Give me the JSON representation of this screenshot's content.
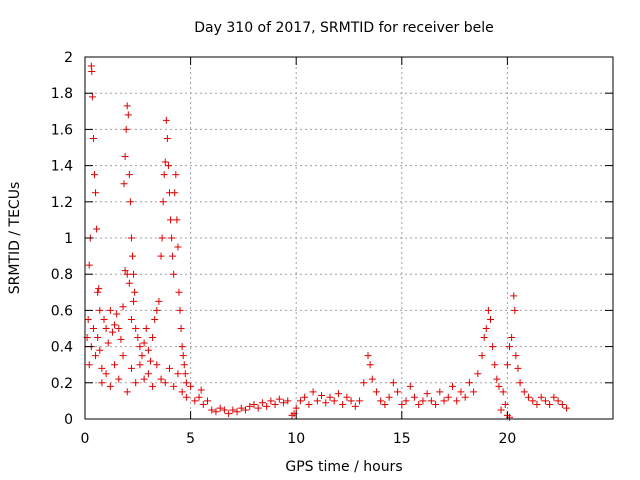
{
  "chart_data": {
    "type": "scatter",
    "title": "Day 310 of 2017, SRMTID for receiver bele",
    "xlabel": "GPS time / hours",
    "ylabel": "SRMTID / TECUs",
    "xlim": [
      0,
      25
    ],
    "ylim": [
      0,
      2
    ],
    "xticks": [
      0,
      5,
      10,
      15,
      20
    ],
    "xtick_labels": [
      "0",
      "5",
      "10",
      "15",
      "20"
    ],
    "yticks": [
      0,
      0.2,
      0.4,
      0.6,
      0.8,
      1,
      1.2,
      1.4,
      1.6,
      1.8,
      2
    ],
    "ytick_labels": [
      "0",
      "0.2",
      "0.4",
      "0.6",
      "0.8",
      "1",
      "1.2",
      "1.4",
      "1.6",
      "1.8",
      "2"
    ],
    "grid": true,
    "marker": "+",
    "color": "#e00000",
    "series": [
      {
        "name": "SRMTID",
        "points": [
          [
            0.1,
            0.45
          ],
          [
            0.15,
            0.55
          ],
          [
            0.2,
            0.85
          ],
          [
            0.25,
            1.0
          ],
          [
            0.3,
            1.95
          ],
          [
            0.32,
            1.92
          ],
          [
            0.35,
            1.78
          ],
          [
            0.4,
            1.55
          ],
          [
            0.45,
            1.35
          ],
          [
            0.5,
            1.25
          ],
          [
            0.55,
            1.05
          ],
          [
            0.6,
            0.7
          ],
          [
            0.65,
            0.72
          ],
          [
            0.7,
            0.6
          ],
          [
            0.2,
            0.3
          ],
          [
            0.3,
            0.4
          ],
          [
            0.4,
            0.5
          ],
          [
            0.5,
            0.35
          ],
          [
            0.6,
            0.45
          ],
          [
            0.7,
            0.38
          ],
          [
            0.8,
            0.28
          ],
          [
            0.9,
            0.55
          ],
          [
            1.0,
            0.5
          ],
          [
            1.1,
            0.42
          ],
          [
            1.2,
            0.6
          ],
          [
            1.3,
            0.48
          ],
          [
            1.4,
            0.52
          ],
          [
            1.5,
            0.58
          ],
          [
            1.6,
            0.5
          ],
          [
            1.7,
            0.44
          ],
          [
            1.8,
            0.62
          ],
          [
            1.85,
            1.3
          ],
          [
            1.9,
            1.45
          ],
          [
            1.95,
            1.6
          ],
          [
            2.0,
            1.73
          ],
          [
            2.05,
            1.68
          ],
          [
            2.1,
            1.35
          ],
          [
            2.15,
            1.2
          ],
          [
            2.2,
            1.0
          ],
          [
            2.25,
            0.9
          ],
          [
            2.3,
            0.8
          ],
          [
            2.35,
            0.7
          ],
          [
            1.9,
            0.82
          ],
          [
            2.0,
            0.8
          ],
          [
            2.1,
            0.75
          ],
          [
            2.2,
            0.55
          ],
          [
            2.3,
            0.65
          ],
          [
            2.4,
            0.5
          ],
          [
            2.5,
            0.45
          ],
          [
            2.6,
            0.4
          ],
          [
            2.7,
            0.35
          ],
          [
            2.8,
            0.42
          ],
          [
            2.9,
            0.5
          ],
          [
            3.0,
            0.38
          ],
          [
            3.1,
            0.32
          ],
          [
            3.2,
            0.45
          ],
          [
            3.3,
            0.55
          ],
          [
            3.4,
            0.6
          ],
          [
            3.5,
            0.65
          ],
          [
            3.6,
            0.9
          ],
          [
            3.65,
            1.0
          ],
          [
            3.7,
            1.2
          ],
          [
            3.75,
            1.35
          ],
          [
            3.8,
            1.42
          ],
          [
            3.85,
            1.65
          ],
          [
            3.9,
            1.55
          ],
          [
            3.95,
            1.4
          ],
          [
            4.0,
            1.25
          ],
          [
            4.05,
            1.1
          ],
          [
            4.1,
            1.0
          ],
          [
            4.15,
            0.9
          ],
          [
            4.2,
            0.8
          ],
          [
            4.25,
            1.25
          ],
          [
            4.3,
            1.35
          ],
          [
            4.35,
            1.1
          ],
          [
            4.4,
            0.95
          ],
          [
            4.45,
            0.7
          ],
          [
            4.5,
            0.6
          ],
          [
            4.55,
            0.5
          ],
          [
            4.6,
            0.4
          ],
          [
            4.65,
            0.35
          ],
          [
            4.7,
            0.3
          ],
          [
            4.75,
            0.25
          ],
          [
            4.8,
            0.2
          ],
          [
            0.8,
            0.2
          ],
          [
            1.0,
            0.25
          ],
          [
            1.2,
            0.18
          ],
          [
            1.4,
            0.3
          ],
          [
            1.6,
            0.22
          ],
          [
            1.8,
            0.35
          ],
          [
            2.0,
            0.15
          ],
          [
            2.2,
            0.28
          ],
          [
            2.4,
            0.2
          ],
          [
            2.6,
            0.3
          ],
          [
            2.8,
            0.22
          ],
          [
            3.0,
            0.25
          ],
          [
            3.2,
            0.18
          ],
          [
            3.4,
            0.3
          ],
          [
            3.6,
            0.22
          ],
          [
            3.8,
            0.2
          ],
          [
            4.0,
            0.28
          ],
          [
            4.2,
            0.18
          ],
          [
            4.4,
            0.25
          ],
          [
            4.6,
            0.15
          ],
          [
            4.8,
            0.12
          ],
          [
            5.0,
            0.18
          ],
          [
            5.2,
            0.1
          ],
          [
            5.4,
            0.12
          ],
          [
            5.5,
            0.16
          ],
          [
            5.6,
            0.08
          ],
          [
            5.8,
            0.1
          ],
          [
            6.0,
            0.05
          ],
          [
            6.2,
            0.04
          ],
          [
            6.4,
            0.06
          ],
          [
            6.6,
            0.05
          ],
          [
            6.8,
            0.03
          ],
          [
            7.0,
            0.05
          ],
          [
            7.2,
            0.04
          ],
          [
            7.4,
            0.06
          ],
          [
            7.6,
            0.05
          ],
          [
            7.8,
            0.07
          ],
          [
            8.0,
            0.08
          ],
          [
            8.2,
            0.06
          ],
          [
            8.4,
            0.09
          ],
          [
            8.6,
            0.07
          ],
          [
            8.8,
            0.1
          ],
          [
            9.0,
            0.08
          ],
          [
            9.2,
            0.11
          ],
          [
            9.4,
            0.09
          ],
          [
            9.6,
            0.1
          ],
          [
            9.8,
            0.02
          ],
          [
            9.9,
            0.03
          ],
          [
            10.0,
            0.06
          ],
          [
            10.2,
            0.1
          ],
          [
            10.4,
            0.12
          ],
          [
            10.6,
            0.08
          ],
          [
            10.8,
            0.15
          ],
          [
            11.0,
            0.1
          ],
          [
            11.2,
            0.13
          ],
          [
            11.4,
            0.09
          ],
          [
            11.6,
            0.12
          ],
          [
            11.8,
            0.1
          ],
          [
            12.0,
            0.14
          ],
          [
            12.2,
            0.08
          ],
          [
            12.4,
            0.12
          ],
          [
            12.6,
            0.1
          ],
          [
            12.8,
            0.07
          ],
          [
            13.0,
            0.1
          ],
          [
            13.2,
            0.2
          ],
          [
            13.4,
            0.35
          ],
          [
            13.5,
            0.3
          ],
          [
            13.6,
            0.22
          ],
          [
            13.8,
            0.15
          ],
          [
            14.0,
            0.1
          ],
          [
            14.2,
            0.08
          ],
          [
            14.4,
            0.12
          ],
          [
            14.6,
            0.2
          ],
          [
            14.8,
            0.15
          ],
          [
            15.0,
            0.08
          ],
          [
            15.2,
            0.1
          ],
          [
            15.4,
            0.18
          ],
          [
            15.6,
            0.12
          ],
          [
            15.8,
            0.08
          ],
          [
            16.0,
            0.1
          ],
          [
            16.2,
            0.14
          ],
          [
            16.4,
            0.1
          ],
          [
            16.6,
            0.08
          ],
          [
            16.8,
            0.15
          ],
          [
            17.0,
            0.1
          ],
          [
            17.2,
            0.12
          ],
          [
            17.4,
            0.18
          ],
          [
            17.6,
            0.1
          ],
          [
            17.8,
            0.15
          ],
          [
            18.0,
            0.12
          ],
          [
            18.2,
            0.2
          ],
          [
            18.4,
            0.15
          ],
          [
            18.6,
            0.25
          ],
          [
            18.8,
            0.35
          ],
          [
            18.9,
            0.45
          ],
          [
            19.0,
            0.5
          ],
          [
            19.1,
            0.6
          ],
          [
            19.2,
            0.55
          ],
          [
            19.3,
            0.4
          ],
          [
            19.4,
            0.3
          ],
          [
            19.5,
            0.22
          ],
          [
            19.6,
            0.18
          ],
          [
            19.8,
            0.15
          ],
          [
            20.0,
            0.3
          ],
          [
            20.1,
            0.4
          ],
          [
            20.2,
            0.45
          ],
          [
            20.3,
            0.68
          ],
          [
            20.35,
            0.6
          ],
          [
            20.4,
            0.35
          ],
          [
            20.5,
            0.28
          ],
          [
            20.6,
            0.2
          ],
          [
            20.8,
            0.15
          ],
          [
            21.0,
            0.12
          ],
          [
            21.2,
            0.1
          ],
          [
            21.4,
            0.08
          ],
          [
            21.6,
            0.12
          ],
          [
            21.8,
            0.1
          ],
          [
            22.0,
            0.08
          ],
          [
            22.2,
            0.12
          ],
          [
            22.4,
            0.1
          ],
          [
            22.6,
            0.08
          ],
          [
            22.8,
            0.06
          ],
          [
            19.7,
            0.05
          ],
          [
            20.0,
            0.02
          ],
          [
            20.1,
            0.01
          ],
          [
            19.9,
            0.08
          ]
        ]
      }
    ]
  }
}
